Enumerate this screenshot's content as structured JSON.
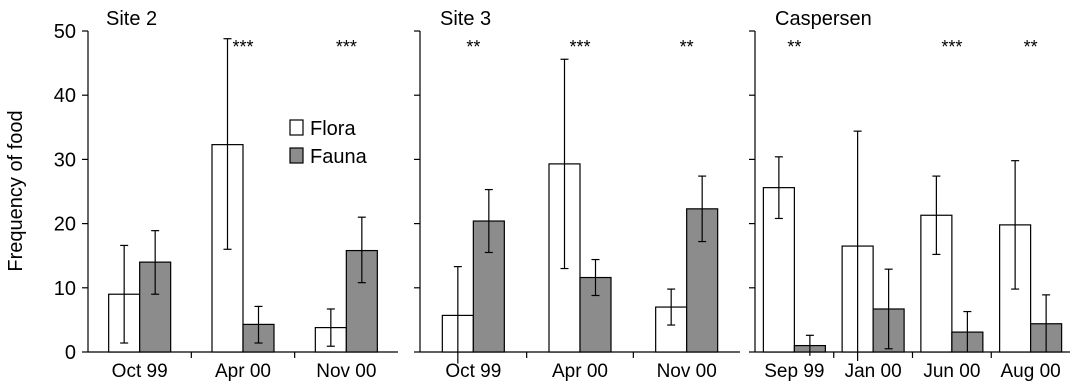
{
  "colors": {
    "flora": "#ffffff",
    "fauna": "#8c8c8c",
    "axis": "#000000"
  },
  "chart_data": {
    "type": "bar",
    "ylabel": "Frequency of food",
    "ylim": [
      0,
      50
    ],
    "yticks": [
      0,
      10,
      20,
      30,
      40,
      50
    ],
    "legend": {
      "placement": "inside first panel, upper-middle",
      "entries": [
        "Flora",
        "Fauna"
      ]
    },
    "error_bars": true,
    "panels": [
      {
        "title": "Site 2",
        "categories": [
          "Oct 99",
          "Apr 00",
          "Nov 00"
        ],
        "series": [
          {
            "name": "Flora",
            "values": [
              9,
              32.3,
              3.8
            ],
            "err_low": [
              1.4,
              16,
              0.9
            ],
            "err_high": [
              16.6,
              48.8,
              6.7
            ]
          },
          {
            "name": "Fauna",
            "values": [
              14,
              4.3,
              15.8
            ],
            "err_low": [
              9,
              1.4,
              10.8
            ],
            "err_high": [
              18.9,
              7.1,
              21
            ]
          }
        ],
        "annotations": [
          "",
          "***",
          "***"
        ]
      },
      {
        "title": "Site 3",
        "categories": [
          "Oct 99",
          "Apr 00",
          "Nov 00"
        ],
        "series": [
          {
            "name": "Flora",
            "values": [
              5.7,
              29.3,
              7
            ],
            "err_low": [
              -1.8,
              13,
              4.2
            ],
            "err_high": [
              13.3,
              45.6,
              9.8
            ]
          },
          {
            "name": "Fauna",
            "values": [
              20.4,
              11.6,
              22.3
            ],
            "err_low": [
              15.5,
              8.8,
              17.2
            ],
            "err_high": [
              25.3,
              14.4,
              27.4
            ]
          }
        ],
        "annotations": [
          "**",
          "***",
          "**"
        ]
      },
      {
        "title": "Caspersen",
        "categories": [
          "Sep 99",
          "Jan 00",
          "Jun 00",
          "Aug 00"
        ],
        "series": [
          {
            "name": "Flora",
            "values": [
              25.6,
              16.5,
              21.3,
              19.8
            ],
            "err_low": [
              20.8,
              -1.4,
              15.2,
              9.8
            ],
            "err_high": [
              30.4,
              34.4,
              27.4,
              29.8
            ]
          },
          {
            "name": "Fauna",
            "values": [
              1,
              6.7,
              3.1,
              4.4
            ],
            "err_low": [
              -0.6,
              0.5,
              0,
              0
            ],
            "err_high": [
              2.6,
              12.9,
              6.3,
              8.9
            ]
          }
        ],
        "annotations": [
          "**",
          "",
          "***",
          "**"
        ]
      }
    ]
  }
}
